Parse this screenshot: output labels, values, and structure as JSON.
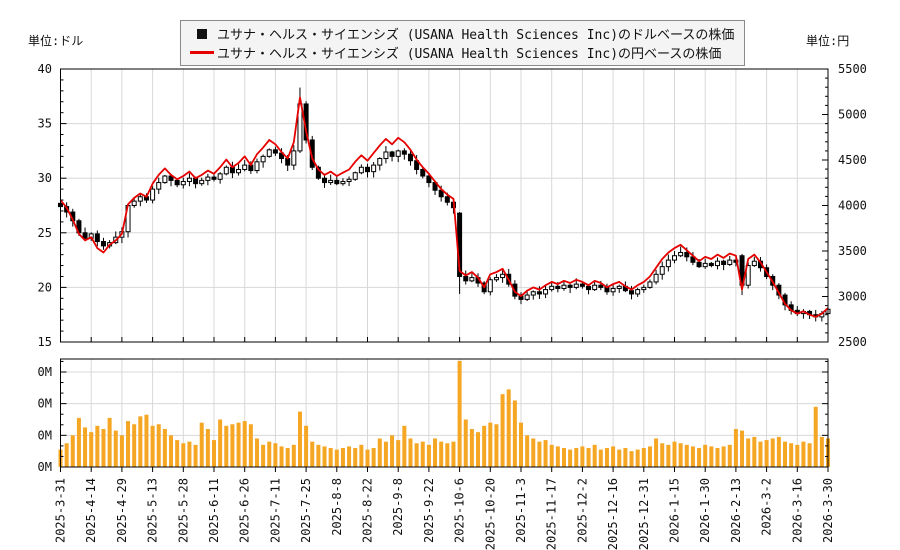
{
  "units": {
    "left": "単位:ドル",
    "right": "単位:円"
  },
  "legend": {
    "entries": [
      {
        "marker": "black-square",
        "label": "ユサナ・ヘルス・サイエンシズ (USANA Health Sciences Inc)のドルベースの株価"
      },
      {
        "marker": "red-line",
        "label": "ユサナ・ヘルス・サイエンシズ (USANA Health Sciences Inc)の円ベースの株価"
      }
    ]
  },
  "chart_data": {
    "type": "candlestick+line+volume",
    "x_tick_labels": [
      "2025-3-31",
      "2025-4-14",
      "2025-4-29",
      "2025-5-13",
      "2025-5-28",
      "2025-6-11",
      "2025-6-26",
      "2025-7-11",
      "2025-7-25",
      "2025-8-8",
      "2025-8-22",
      "2025-9-8",
      "2025-9-22",
      "2025-10-6",
      "2025-10-20",
      "2025-11-3",
      "2025-11-17",
      "2025-12-2",
      "2025-12-16",
      "2025-12-31",
      "2026-1-15",
      "2026-1-30",
      "2026-2-13",
      "2026-3-2",
      "2026-3-16",
      "2026-3-30"
    ],
    "left_axis": {
      "label": "単位:ドル",
      "ticks": [
        40,
        35,
        30,
        25,
        20,
        15
      ],
      "range": [
        15,
        40
      ],
      "minor_step": 1
    },
    "right_axis": {
      "label": "単位:円",
      "ticks": [
        5500,
        5000,
        4500,
        4000,
        3500,
        3000,
        2500
      ],
      "range": [
        2500,
        5500
      ],
      "minor_step": 100
    },
    "volume_axis": {
      "tick_labels": [
        "0M",
        "0M",
        "0M",
        "0M"
      ],
      "tick_values": [
        3,
        2,
        1,
        0
      ],
      "range": [
        0,
        3.41
      ]
    },
    "grid": true,
    "colors": {
      "grid": "#d8d8d8",
      "axis": "#000000",
      "candle": "#000000",
      "candle_up_fill": "#ffffff",
      "line": "#e60000",
      "volume": "#f5a623"
    },
    "series": [
      {
        "name": "ユサナ・ヘルス・サイエンシズ (USANA Health Sciences Inc)のドルベースの株価",
        "type": "candlestick",
        "axis": "left",
        "unit": "ドル",
        "closes": [
          27.4,
          26.9,
          26.1,
          25.0,
          24.5,
          24.9,
          24.2,
          23.8,
          24.1,
          24.6,
          25.1,
          27.5,
          27.9,
          28.3,
          28.0,
          29.0,
          29.6,
          30.2,
          29.8,
          29.4,
          29.7,
          30.0,
          29.5,
          29.8,
          30.1,
          29.9,
          30.4,
          31.0,
          30.5,
          30.8,
          31.2,
          30.7,
          31.5,
          32.0,
          32.6,
          32.3,
          31.8,
          31.2,
          32.5,
          36.8,
          33.5,
          31.0,
          30.0,
          29.6,
          29.8,
          29.5,
          29.7,
          29.9,
          30.5,
          31.0,
          30.6,
          31.2,
          31.8,
          32.4,
          32.0,
          32.5,
          32.2,
          31.6,
          30.8,
          30.2,
          29.6,
          28.9,
          28.3,
          27.8,
          27.3,
          21.0,
          20.6,
          20.9,
          20.4,
          19.6,
          20.7,
          20.9,
          21.2,
          20.3,
          19.2,
          18.9,
          19.3,
          19.6,
          19.4,
          19.8,
          20.1,
          19.9,
          20.2,
          20.0,
          20.3,
          20.1,
          19.8,
          20.2,
          20.0,
          19.6,
          19.9,
          20.1,
          19.7,
          19.4,
          19.8,
          20.0,
          20.5,
          21.2,
          21.9,
          22.5,
          22.9,
          23.2,
          22.8,
          22.3,
          21.9,
          22.2,
          22.0,
          22.4,
          22.1,
          22.5,
          22.3,
          20.2,
          22.0,
          22.4,
          21.8,
          21.0,
          20.2,
          19.3,
          18.4,
          17.9,
          17.6,
          17.8,
          17.5,
          17.3,
          17.6,
          18.0
        ],
        "candle_overrides": {
          "0": {
            "open": 27.7
          },
          "39": {
            "high": 38.3
          },
          "65": {
            "open": 26.8,
            "low": 19.4
          },
          "111": {
            "open": 22.9,
            "low": 19.3
          }
        }
      },
      {
        "name": "ユサナ・ヘルス・サイエンシズ (USANA Health Sciences Inc)の円ベースの株価",
        "type": "line",
        "axis": "right",
        "unit": "円",
        "values": [
          4060,
          3976,
          3844,
          3688,
          3616,
          3652,
          3532,
          3484,
          3568,
          3616,
          3688,
          4012,
          4084,
          4132,
          4096,
          4240,
          4336,
          4408,
          4336,
          4288,
          4324,
          4372,
          4300,
          4336,
          4384,
          4348,
          4420,
          4504,
          4420,
          4468,
          4540,
          4444,
          4564,
          4636,
          4720,
          4672,
          4588,
          4516,
          4696,
          5188,
          4816,
          4516,
          4396,
          4336,
          4372,
          4324,
          4360,
          4396,
          4480,
          4552,
          4492,
          4576,
          4660,
          4732,
          4672,
          4744,
          4696,
          4612,
          4504,
          4420,
          4348,
          4264,
          4180,
          4120,
          4072,
          3280,
          3232,
          3268,
          3208,
          3100,
          3244,
          3268,
          3304,
          3184,
          3052,
          3004,
          3064,
          3100,
          3076,
          3124,
          3160,
          3136,
          3172,
          3148,
          3184,
          3160,
          3124,
          3172,
          3148,
          3100,
          3136,
          3160,
          3112,
          3076,
          3124,
          3160,
          3220,
          3316,
          3412,
          3484,
          3532,
          3568,
          3508,
          3448,
          3388,
          3436,
          3412,
          3460,
          3424,
          3472,
          3448,
          3076,
          3412,
          3460,
          3376,
          3268,
          3160,
          3040,
          2920,
          2848,
          2812,
          2836,
          2800,
          2776,
          2812,
          2872
        ]
      },
      {
        "name": "volume",
        "type": "bar",
        "values": [
          0.55,
          0.75,
          1.0,
          1.55,
          1.25,
          1.1,
          1.3,
          1.2,
          1.55,
          1.15,
          1.0,
          1.45,
          1.35,
          1.6,
          1.65,
          1.3,
          1.35,
          1.2,
          1.0,
          0.85,
          0.75,
          0.8,
          0.7,
          1.4,
          1.2,
          0.85,
          1.5,
          1.3,
          1.35,
          1.4,
          1.45,
          1.35,
          0.9,
          0.7,
          0.8,
          0.75,
          0.65,
          0.6,
          0.7,
          1.75,
          1.3,
          0.8,
          0.7,
          0.65,
          0.6,
          0.55,
          0.6,
          0.65,
          0.6,
          0.7,
          0.55,
          0.6,
          0.9,
          0.8,
          1.0,
          0.85,
          1.3,
          0.9,
          0.75,
          0.8,
          0.7,
          0.9,
          0.8,
          0.75,
          0.8,
          3.35,
          1.5,
          1.2,
          1.1,
          1.3,
          1.4,
          1.35,
          2.3,
          2.45,
          2.1,
          1.4,
          1.0,
          0.9,
          0.8,
          0.85,
          0.7,
          0.65,
          0.6,
          0.55,
          0.6,
          0.65,
          0.6,
          0.7,
          0.55,
          0.6,
          0.65,
          0.55,
          0.6,
          0.5,
          0.55,
          0.6,
          0.65,
          0.9,
          0.75,
          0.7,
          0.8,
          0.75,
          0.7,
          0.65,
          0.6,
          0.7,
          0.65,
          0.6,
          0.65,
          0.7,
          1.2,
          1.15,
          0.9,
          0.95,
          0.8,
          0.85,
          0.9,
          0.95,
          0.8,
          0.75,
          0.7,
          0.8,
          0.75,
          1.9,
          0.95,
          0.9
        ]
      }
    ]
  }
}
